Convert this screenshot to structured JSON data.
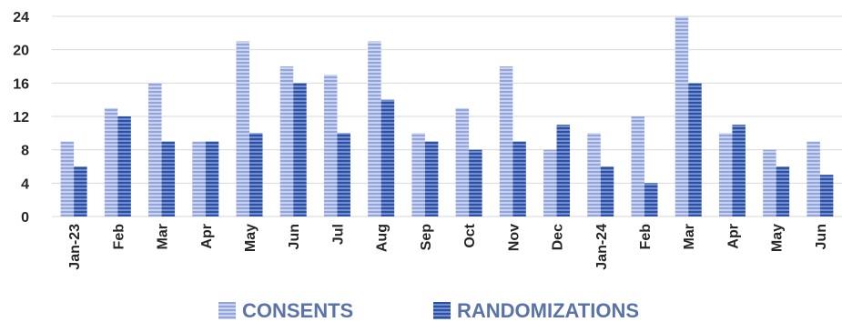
{
  "chart_data": {
    "type": "bar",
    "categories": [
      "Jan-23",
      "Feb",
      "Mar",
      "Apr",
      "May",
      "Jun",
      "Jul",
      "Aug",
      "Sep",
      "Oct",
      "Nov",
      "Dec",
      "Jan-24",
      "Feb",
      "Mar",
      "Apr",
      "May",
      "Jun"
    ],
    "series": [
      {
        "name": "CONSENTS",
        "values": [
          9,
          13,
          16,
          9,
          21,
          18,
          17,
          21,
          10,
          13,
          18,
          8,
          10,
          12,
          24,
          10,
          8,
          9
        ],
        "color": "#a9b8e3"
      },
      {
        "name": "RANDOMIZATIONS",
        "values": [
          6,
          12,
          9,
          9,
          10,
          16,
          10,
          14,
          9,
          8,
          9,
          11,
          6,
          4,
          16,
          11,
          6,
          5
        ],
        "color": "#3f62b4"
      }
    ],
    "yticks": [
      0,
      4,
      8,
      12,
      16,
      20,
      24
    ],
    "ylim": [
      0,
      24
    ],
    "grid": true,
    "legend": "bottom",
    "title": "",
    "xlabel": "",
    "ylabel": ""
  }
}
